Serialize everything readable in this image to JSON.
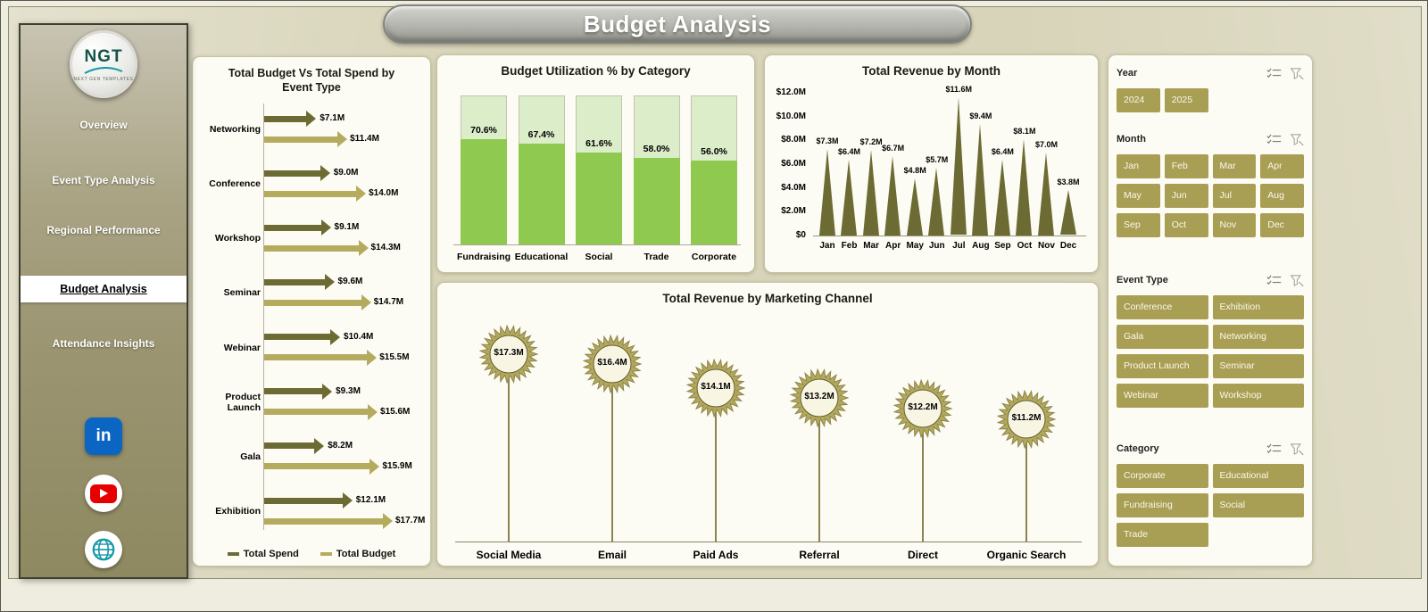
{
  "app": {
    "title": "Budget Analysis"
  },
  "colors": {
    "dark_olive": "#6D6B34",
    "khaki": "#B5AB5E",
    "green": "#8FC94F",
    "light_green": "#DCEDC9",
    "filter_button": "#A89E54",
    "stem": "#8A8450",
    "starburst": "#B2A85C",
    "starburst_center": "#F8F5E3",
    "linkedin_blue": "#0A66C2",
    "youtube_red": "#E80000",
    "globe_teal": "#1598A8"
  },
  "sidebar": {
    "logo": {
      "text": "NGT",
      "tagline": "NEXT GEN TEMPLATES"
    },
    "items": [
      {
        "label": "Overview",
        "active": false
      },
      {
        "label": "Event Type Analysis",
        "active": false
      },
      {
        "label": "Regional Performance",
        "active": false
      },
      {
        "label": "Budget Analysis",
        "active": true
      },
      {
        "label": "Attendance Insights",
        "active": false
      }
    ],
    "social": [
      "linkedin",
      "youtube",
      "website"
    ]
  },
  "chart_data": [
    {
      "type": "bar",
      "mark": "arrow",
      "orientation": "horizontal",
      "title": "Total Budget Vs Total Spend by Event Type",
      "categories": [
        "Networking",
        "Conference",
        "Workshop",
        "Seminar",
        "Webinar",
        "Product Launch",
        "Gala",
        "Exhibition"
      ],
      "series": [
        {
          "name": "Total Spend",
          "values": [
            7.1,
            9.0,
            9.1,
            9.6,
            10.4,
            9.3,
            8.2,
            12.1
          ],
          "labels": [
            "$7.1M",
            "$9.0M",
            "$9.1M",
            "$9.6M",
            "$10.4M",
            "$9.3M",
            "$8.2M",
            "$12.1M"
          ]
        },
        {
          "name": "Total Budget",
          "values": [
            11.4,
            14.0,
            14.3,
            14.7,
            15.5,
            15.6,
            15.9,
            17.7
          ],
          "labels": [
            "$11.4M",
            "$14.0M",
            "$14.3M",
            "$14.7M",
            "$15.5M",
            "$15.6M",
            "$15.9M",
            "$17.7M"
          ]
        }
      ],
      "xlim": [
        0,
        17.7
      ],
      "legend_position": "bottom"
    },
    {
      "type": "bar",
      "mark": "percent-fill-column",
      "title": "Budget Utilization % by Category",
      "categories": [
        "Fundraising",
        "Educational",
        "Social",
        "Trade",
        "Corporate"
      ],
      "values": [
        70.6,
        67.4,
        61.6,
        58.0,
        56.0
      ],
      "labels": [
        "70.6%",
        "67.4%",
        "61.6%",
        "58.0%",
        "56.0%"
      ],
      "ylim": [
        0,
        100
      ]
    },
    {
      "type": "bar",
      "mark": "triangle",
      "title": "Total Revenue by Month",
      "categories": [
        "Jan",
        "Feb",
        "Mar",
        "Apr",
        "May",
        "Jun",
        "Jul",
        "Aug",
        "Sep",
        "Oct",
        "Nov",
        "Dec"
      ],
      "values": [
        7.3,
        6.4,
        7.2,
        6.7,
        4.8,
        5.7,
        11.6,
        9.4,
        6.4,
        8.1,
        7.0,
        3.8
      ],
      "labels": [
        "$7.3M",
        "$6.4M",
        "$7.2M",
        "$6.7M",
        "$4.8M",
        "$5.7M",
        "$11.6M",
        "$9.4M",
        "$6.4M",
        "$8.1M",
        "$7.0M",
        "$3.8M"
      ],
      "yticks": [
        "$0",
        "$2.0M",
        "$4.0M",
        "$6.0M",
        "$8.0M",
        "$10.0M",
        "$12.0M"
      ],
      "ylim": [
        0,
        12
      ]
    },
    {
      "type": "bar",
      "mark": "lollipop-starburst",
      "title": "Total Revenue by Marketing Channel",
      "categories": [
        "Social Media",
        "Email",
        "Paid Ads",
        "Referral",
        "Direct",
        "Organic Search"
      ],
      "values": [
        17.3,
        16.4,
        14.1,
        13.2,
        12.2,
        11.2
      ],
      "labels": [
        "$17.3M",
        "$16.4M",
        "$14.1M",
        "$13.2M",
        "$12.2M",
        "$11.2M"
      ]
    }
  ],
  "filters": {
    "sections": [
      {
        "id": "year",
        "label": "Year",
        "options": [
          "2024",
          "2025"
        ]
      },
      {
        "id": "month",
        "label": "Month",
        "options": [
          "Jan",
          "Feb",
          "Mar",
          "Apr",
          "May",
          "Jun",
          "Jul",
          "Aug",
          "Sep",
          "Oct",
          "Nov",
          "Dec"
        ]
      },
      {
        "id": "event-type",
        "label": "Event Type",
        "options": [
          "Conference",
          "Exhibition",
          "Gala",
          "Networking",
          "Product Launch",
          "Seminar",
          "Webinar",
          "Workshop"
        ]
      },
      {
        "id": "category",
        "label": "Category",
        "options": [
          "Corporate",
          "Educational",
          "Fundraising",
          "Social",
          "Trade"
        ]
      }
    ]
  }
}
